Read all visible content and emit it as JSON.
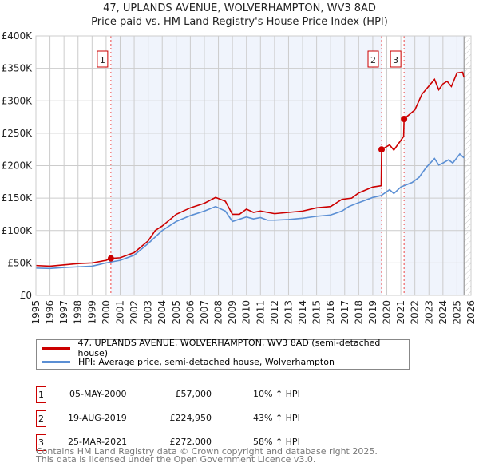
{
  "chart_data": {
    "type": "line",
    "title": "47, UPLANDS AVENUE, WOLVERHAMPTON, WV3 8AD",
    "subtitle": "Price paid vs. HM Land Registry's House Price Index (HPI)",
    "xlim": [
      1995,
      2026
    ],
    "ylim": [
      0,
      400000
    ],
    "x_ticks": [
      "1995",
      "1996",
      "1997",
      "1998",
      "1999",
      "2000",
      "2001",
      "2002",
      "2003",
      "2004",
      "2005",
      "2006",
      "2007",
      "2008",
      "2009",
      "2010",
      "2011",
      "2012",
      "2013",
      "2014",
      "2015",
      "2016",
      "2017",
      "2018",
      "2019",
      "2020",
      "2021",
      "2022",
      "2023",
      "2024",
      "2025",
      "2026"
    ],
    "y_ticks": [
      {
        "v": 0,
        "label": "£0"
      },
      {
        "v": 50000,
        "label": "£50K"
      },
      {
        "v": 100000,
        "label": "£100K"
      },
      {
        "v": 150000,
        "label": "£150K"
      },
      {
        "v": 200000,
        "label": "£200K"
      },
      {
        "v": 250000,
        "label": "£250K"
      },
      {
        "v": 300000,
        "label": "£300K"
      },
      {
        "v": 350000,
        "label": "£350K"
      },
      {
        "v": 400000,
        "label": "£400K"
      }
    ],
    "grid": true,
    "series": [
      {
        "name": "47, UPLANDS AVENUE, WOLVERHAMPTON, WV3 8AD (semi-detached house)",
        "color": "#cc0000",
        "x": [
          1995,
          1996,
          1997,
          1998,
          1999,
          2000,
          2000.34,
          2001,
          2002,
          2003,
          2003.5,
          2004,
          2005,
          2006,
          2007,
          2007.8,
          2008.5,
          2009,
          2009.5,
          2010,
          2010.5,
          2011,
          2012,
          2013,
          2014,
          2015,
          2016,
          2016.8,
          2017.5,
          2018,
          2019,
          2019.6,
          2019.63,
          2020.2,
          2020.5,
          2021.2,
          2021.23,
          2022,
          2022.5,
          2023.4,
          2023.7,
          2024,
          2024.3,
          2024.6,
          2025,
          2025.4,
          2025.5
        ],
        "y": [
          46000,
          45000,
          47000,
          49000,
          50000,
          54000,
          57000,
          58000,
          66000,
          84000,
          100000,
          107000,
          125000,
          135000,
          142000,
          151000,
          145000,
          125000,
          125000,
          133000,
          128000,
          130000,
          126000,
          128000,
          130000,
          135000,
          137000,
          148000,
          150000,
          158000,
          167000,
          169000,
          224950,
          232000,
          224000,
          245000,
          272000,
          286000,
          310000,
          333000,
          317000,
          326000,
          330000,
          322000,
          343000,
          344000,
          336000
        ]
      },
      {
        "name": "HPI: Average price, semi-detached house, Wolverhampton",
        "color": "#5b8fd4",
        "x": [
          1995,
          1996,
          1997,
          1998,
          1999,
          2000,
          2001,
          2002,
          2003,
          2004,
          2005,
          2006,
          2007,
          2007.8,
          2008.5,
          2009,
          2010,
          2010.5,
          2011,
          2011.5,
          2012,
          2013,
          2014,
          2015,
          2016,
          2016.8,
          2017.3,
          2018,
          2019,
          2019.6,
          2020.2,
          2020.5,
          2021,
          2021.8,
          2022.3,
          2022.8,
          2023.4,
          2023.7,
          2024,
          2024.4,
          2024.7,
          2025.2,
          2025.5
        ],
        "y": [
          42000,
          41500,
          43000,
          44000,
          45000,
          50000,
          54000,
          62000,
          80000,
          100000,
          114000,
          123000,
          130000,
          137000,
          130000,
          114000,
          121000,
          118000,
          120000,
          116000,
          116000,
          117000,
          119000,
          122000,
          124000,
          130000,
          137000,
          143000,
          151000,
          154000,
          163000,
          157000,
          167000,
          174000,
          182000,
          197000,
          211000,
          201000,
          204000,
          209000,
          204000,
          218000,
          212000
        ]
      }
    ],
    "sales": [
      {
        "n": "1",
        "x": 2000.34,
        "y": 57000,
        "date": "05-MAY-2000",
        "price": "£57,000",
        "hpi": "10% ↑ HPI"
      },
      {
        "n": "2",
        "x": 2019.63,
        "y": 224950,
        "date": "19-AUG-2019",
        "price": "£224,950",
        "hpi": "43% ↑ HPI"
      },
      {
        "n": "3",
        "x": 2021.23,
        "y": 272000,
        "date": "25-MAR-2021",
        "price": "£272,000",
        "hpi": "58% ↑ HPI"
      }
    ],
    "shaded_ranges": [
      [
        2000.34,
        2019.63
      ],
      [
        2021.23,
        2025.5
      ]
    ],
    "forecast_from": 2025.5
  },
  "footer": {
    "line1": "Contains HM Land Registry data © Crown copyright and database right 2025.",
    "line2": "This data is licensed under the Open Government Licence v3.0."
  }
}
